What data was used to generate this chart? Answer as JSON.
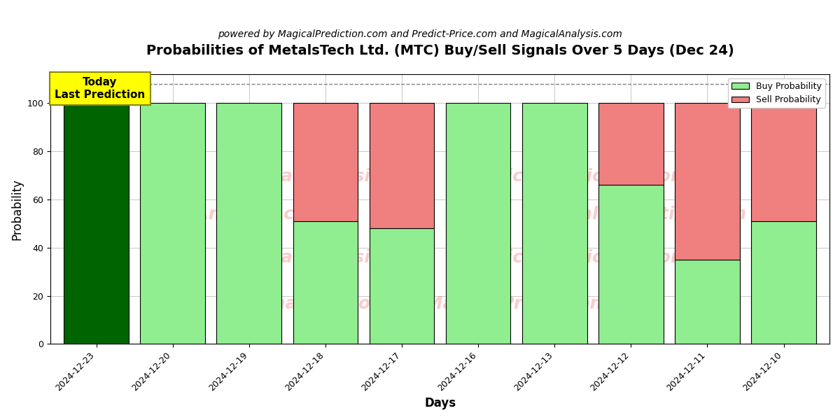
{
  "title": "Probabilities of MetalsTech Ltd. (MTC) Buy/Sell Signals Over 5 Days (Dec 24)",
  "subtitle": "powered by MagicalPrediction.com and Predict-Price.com and MagicalAnalysis.com",
  "xlabel": "Days",
  "ylabel": "Probability",
  "watermark_text": "MagicalAnalysis.com   MagicalPrediction.com",
  "dates": [
    "2024-12-23",
    "2024-12-20",
    "2024-12-19",
    "2024-12-18",
    "2024-12-17",
    "2024-12-16",
    "2024-12-13",
    "2024-12-12",
    "2024-12-11",
    "2024-12-10"
  ],
  "buy_values": [
    100,
    100,
    100,
    51,
    48,
    100,
    100,
    66,
    35,
    51
  ],
  "sell_values": [
    0,
    0,
    0,
    49,
    52,
    0,
    0,
    34,
    65,
    49
  ],
  "today_bar_color": "#006400",
  "buy_bar_color": "#90EE90",
  "sell_bar_color": "#F08080",
  "today_annotation": "Today\nLast Prediction",
  "today_annotation_bg": "#FFFF00",
  "ylim": [
    0,
    112
  ],
  "yticks": [
    0,
    20,
    40,
    60,
    80,
    100
  ],
  "dashed_line_y": 108,
  "legend_buy_label": "Buy Probability",
  "legend_sell_label": "Sell Probability",
  "bar_width": 0.85,
  "bar_edgecolor": "#000000",
  "figsize": [
    12,
    6
  ],
  "dpi": 100,
  "title_fontsize": 14,
  "subtitle_fontsize": 10,
  "axis_label_fontsize": 12,
  "tick_fontsize": 9
}
